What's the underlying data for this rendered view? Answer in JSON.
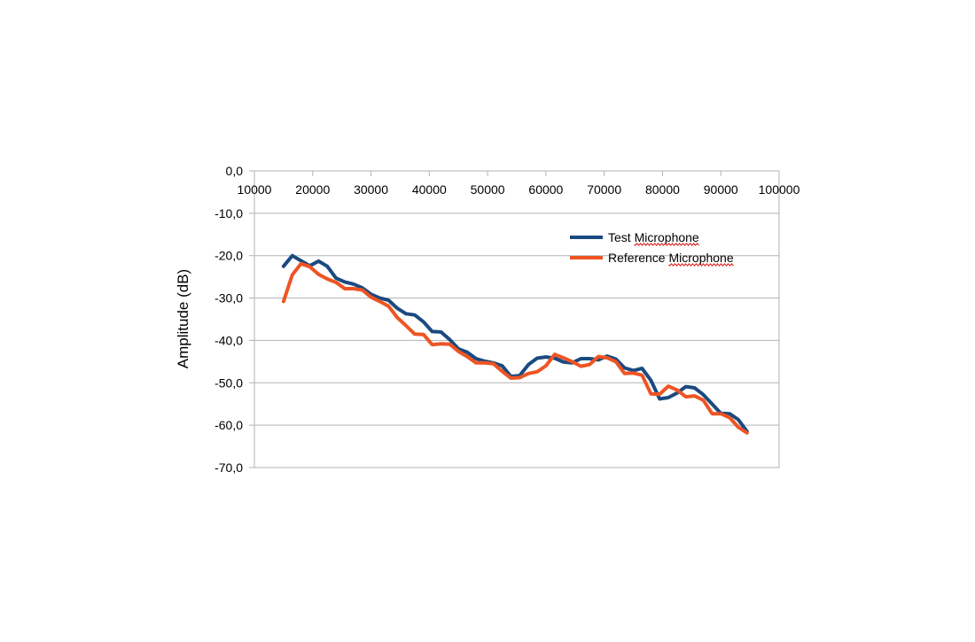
{
  "chart_data": {
    "type": "line",
    "title": "",
    "xlabel": "",
    "ylabel": "Amplitude (dB)",
    "xlim": [
      10000,
      100000
    ],
    "ylim": [
      -70,
      0
    ],
    "x_ticks": [
      "10000",
      "20000",
      "30000",
      "40000",
      "50000",
      "60000",
      "70000",
      "80000",
      "90000",
      "100000"
    ],
    "y_ticks": [
      "0,0",
      "-10,0",
      "-20,0",
      "-30,0",
      "-40,0",
      "-50,0",
      "-60,0",
      "-70,0"
    ],
    "grid": true,
    "x_axis_position": "top",
    "legend_position": "upper-right",
    "series": [
      {
        "name": "Test Microphone",
        "color": "#1a4a80",
        "x": [
          15000,
          16500,
          18000,
          19500,
          21000,
          22500,
          24000,
          25500,
          27000,
          28500,
          30000,
          31500,
          33000,
          34500,
          36000,
          37500,
          39000,
          40500,
          42000,
          43500,
          45000,
          46500,
          48000,
          49500,
          51000,
          52500,
          54000,
          55500,
          57000,
          58500,
          60000,
          61500,
          63000,
          64500,
          66000,
          67500,
          69000,
          70500,
          72000,
          73500,
          75000,
          76500,
          78000,
          79500,
          81000,
          82500,
          84000,
          85500,
          87000,
          88500,
          90000,
          91500,
          93000,
          94500
        ],
        "values": [
          -22.5,
          -20.0,
          -21.2,
          -22.4,
          -21.3,
          -22.5,
          -25.3,
          -26.2,
          -26.7,
          -27.6,
          -29.1,
          -30.0,
          -30.5,
          -32.4,
          -33.7,
          -34.0,
          -35.6,
          -37.9,
          -38.0,
          -39.8,
          -42.0,
          -42.8,
          -44.3,
          -44.9,
          -45.3,
          -46.0,
          -48.5,
          -48.3,
          -45.7,
          -44.2,
          -43.9,
          -44.2,
          -45.1,
          -45.3,
          -44.3,
          -44.3,
          -44.6,
          -43.7,
          -44.4,
          -46.5,
          -47.1,
          -46.6,
          -49.4,
          -53.8,
          -53.5,
          -52.4,
          -50.9,
          -51.2,
          -52.8,
          -55.0,
          -57.2,
          -57.3,
          -58.7,
          -61.5
        ]
      },
      {
        "name": "Reference Microphone",
        "color": "#ee5423",
        "x": [
          15000,
          16500,
          18000,
          19500,
          21000,
          22500,
          24000,
          25500,
          27000,
          28500,
          30000,
          31500,
          33000,
          34500,
          36000,
          37500,
          39000,
          40500,
          42000,
          43500,
          45000,
          46500,
          48000,
          49500,
          51000,
          52500,
          54000,
          55500,
          57000,
          58500,
          60000,
          61500,
          63000,
          64500,
          66000,
          67500,
          69000,
          70500,
          72000,
          73500,
          75000,
          76500,
          78000,
          79500,
          81000,
          82500,
          84000,
          85500,
          87000,
          88500,
          90000,
          91500,
          93000,
          94500
        ],
        "values": [
          -30.8,
          -24.5,
          -21.9,
          -22.6,
          -24.4,
          -25.5,
          -26.3,
          -27.8,
          -27.8,
          -28.1,
          -29.8,
          -30.8,
          -31.9,
          -34.6,
          -36.5,
          -38.5,
          -38.6,
          -41.0,
          -40.8,
          -40.9,
          -42.6,
          -43.8,
          -45.3,
          -45.3,
          -45.5,
          -47.3,
          -48.9,
          -48.8,
          -47.8,
          -47.4,
          -46.0,
          -43.3,
          -44.1,
          -45.0,
          -46.1,
          -45.7,
          -43.8,
          -44.1,
          -45.0,
          -47.8,
          -47.7,
          -48.2,
          -52.6,
          -52.7,
          -50.8,
          -51.7,
          -53.3,
          -53.1,
          -54.1,
          -57.3,
          -57.3,
          -58.2,
          -60.5,
          -61.8
        ]
      }
    ]
  }
}
